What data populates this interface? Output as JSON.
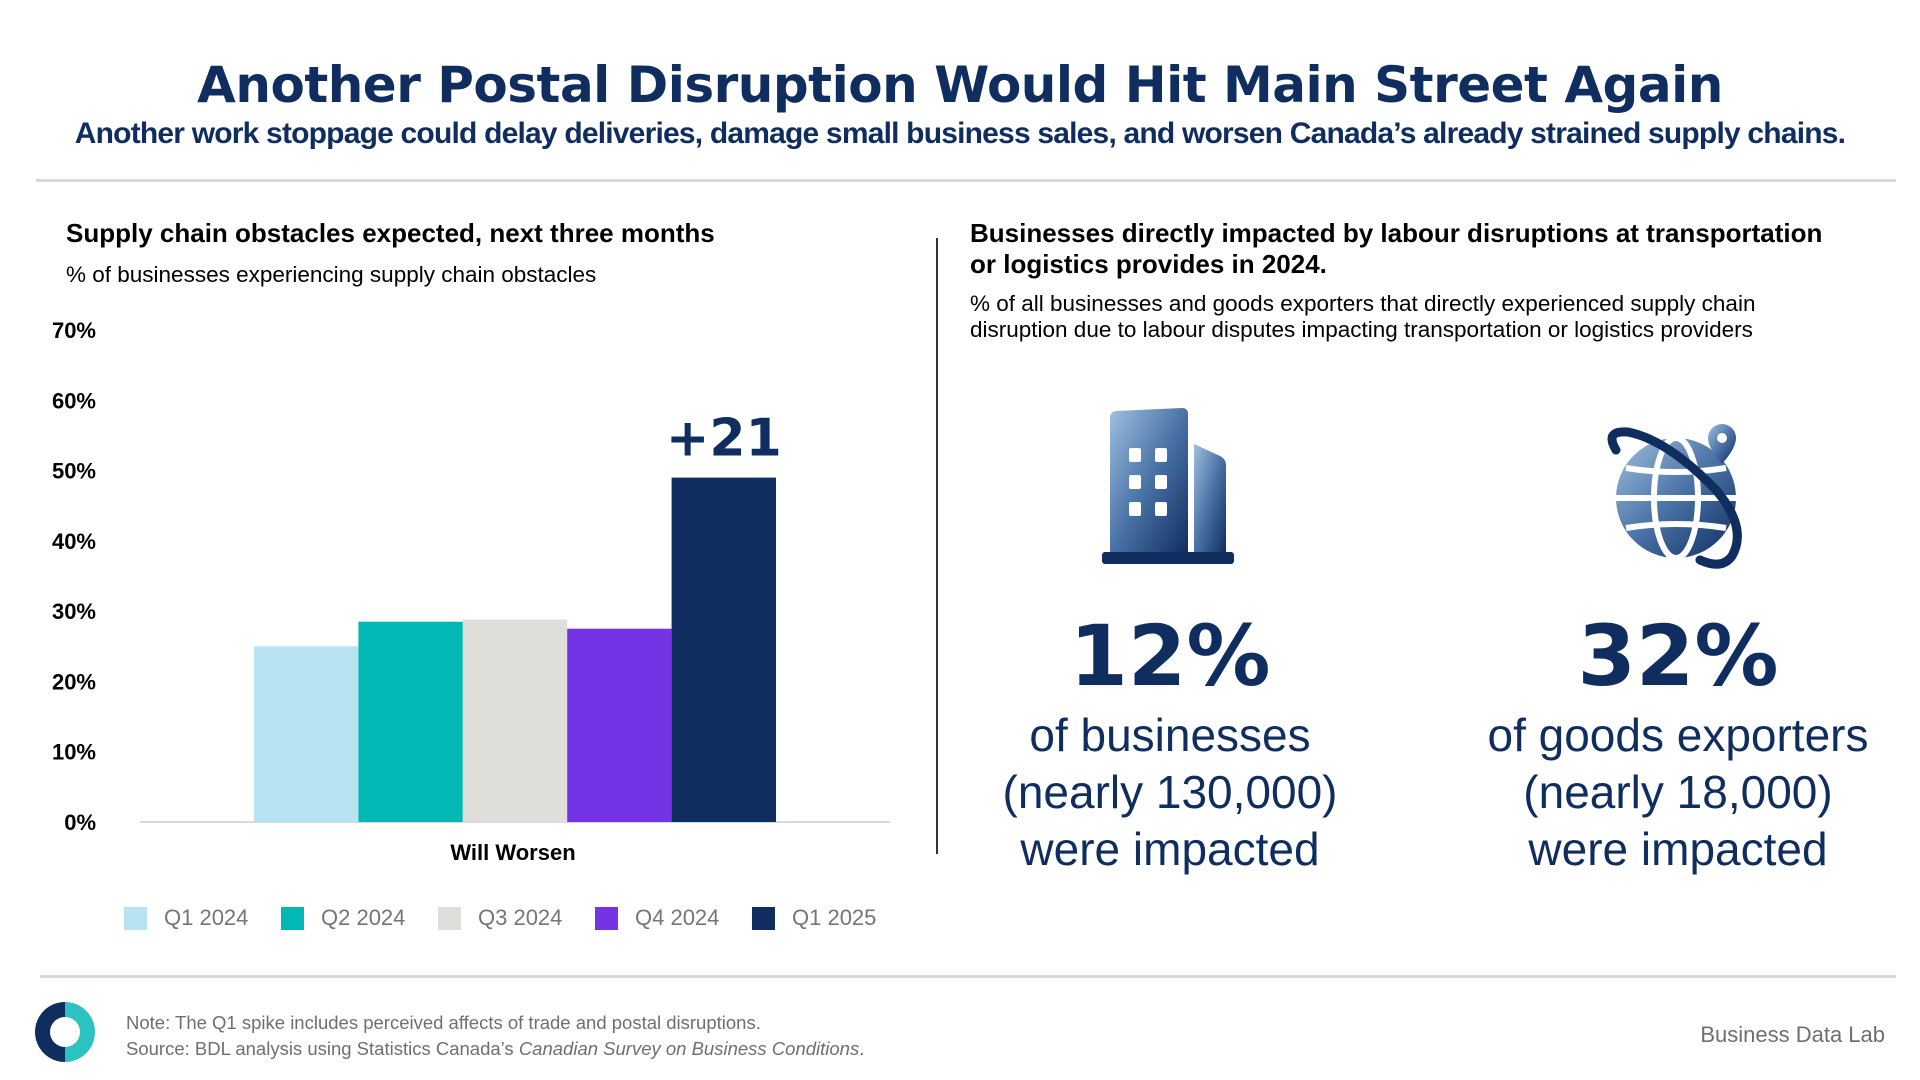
{
  "header": {
    "title": "Another Postal Disruption Would Hit Main Street Again",
    "subtitle": "Another work stoppage could delay deliveries, damage small business sales, and worsen Canada’s already strained supply chains."
  },
  "left_panel": {
    "title": "Supply chain obstacles expected, next three months",
    "subtitle": "% of businesses experiencing supply chain obstacles"
  },
  "right_panel": {
    "title_line1": "Businesses directly impacted by labour disruptions at transportation",
    "title_line2": "or logistics provides in 2024.",
    "subtitle_line1": "% of all businesses and goods exporters that directly experienced supply chain",
    "subtitle_line2": "disruption due to labour disputes impacting transportation or logistics providers",
    "stats": [
      {
        "icon": "building-icon",
        "value": "12%",
        "line1": "of businesses",
        "line2": "(nearly 130,000)",
        "line3": "were impacted"
      },
      {
        "icon": "globe-location-icon",
        "value": "32%",
        "line1": "of goods exporters",
        "line2": "(nearly 18,000)",
        "line3": "were impacted"
      }
    ]
  },
  "chart_data": {
    "type": "bar",
    "title": "Supply chain obstacles expected, next three months",
    "ylabel": "% of businesses experiencing supply chain obstacles",
    "categories": [
      "Will Worsen"
    ],
    "series": [
      {
        "name": "Q1 2024",
        "values": [
          25
        ],
        "color": "#b8e3f1"
      },
      {
        "name": "Q2 2024",
        "values": [
          28.5
        ],
        "color": "#00b9b4"
      },
      {
        "name": "Q3 2024",
        "values": [
          28.8
        ],
        "color": "#dededb"
      },
      {
        "name": "Q4 2024",
        "values": [
          27.5
        ],
        "color": "#7433e4"
      },
      {
        "name": "Q1 2025",
        "values": [
          49
        ],
        "color": "#0f2d5f"
      }
    ],
    "ylim": [
      0,
      70
    ],
    "yticks": [
      "0%",
      "10%",
      "20%",
      "30%",
      "40%",
      "50%",
      "60%",
      "70%"
    ],
    "annotation": "+21",
    "legend_position": "bottom",
    "grid": false
  },
  "footer": {
    "note": "Note: The Q1 spike includes perceived affects of trade and postal disruptions.",
    "source_prefix": "Source: BDL analysis using Statistics Canada’s ",
    "source_title": "Canadian Survey on Business Conditions",
    "source_suffix": ".",
    "brand": "Business Data Lab"
  },
  "colors": {
    "navy": "#0f2d5f",
    "teal": "#2cc2c2",
    "footer_text": "#6f6f6f"
  }
}
